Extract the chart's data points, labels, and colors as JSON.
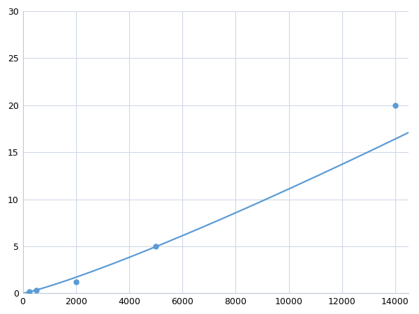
{
  "x_points": [
    250,
    500,
    2000,
    5000,
    14000
  ],
  "y_points": [
    0.2,
    0.3,
    1.2,
    5.0,
    20.0
  ],
  "line_color": "#5b9bd5",
  "marker_color": "#5b9bd5",
  "marker_size": 5,
  "line_width": 1.6,
  "xlim": [
    0,
    14500
  ],
  "ylim": [
    0,
    30
  ],
  "xticks": [
    0,
    2000,
    4000,
    6000,
    8000,
    10000,
    12000,
    14000
  ],
  "yticks": [
    0,
    5,
    10,
    15,
    20,
    25,
    30
  ],
  "xticklabels": [
    "0",
    "2000",
    "4000",
    "6000",
    "8000",
    "10000",
    "12000",
    "14000"
  ],
  "yticklabels": [
    "0",
    "5",
    "10",
    "15",
    "20",
    "25",
    "30"
  ],
  "grid_color": "#d0d8e8",
  "background_color": "#ffffff",
  "tick_fontsize": 9
}
